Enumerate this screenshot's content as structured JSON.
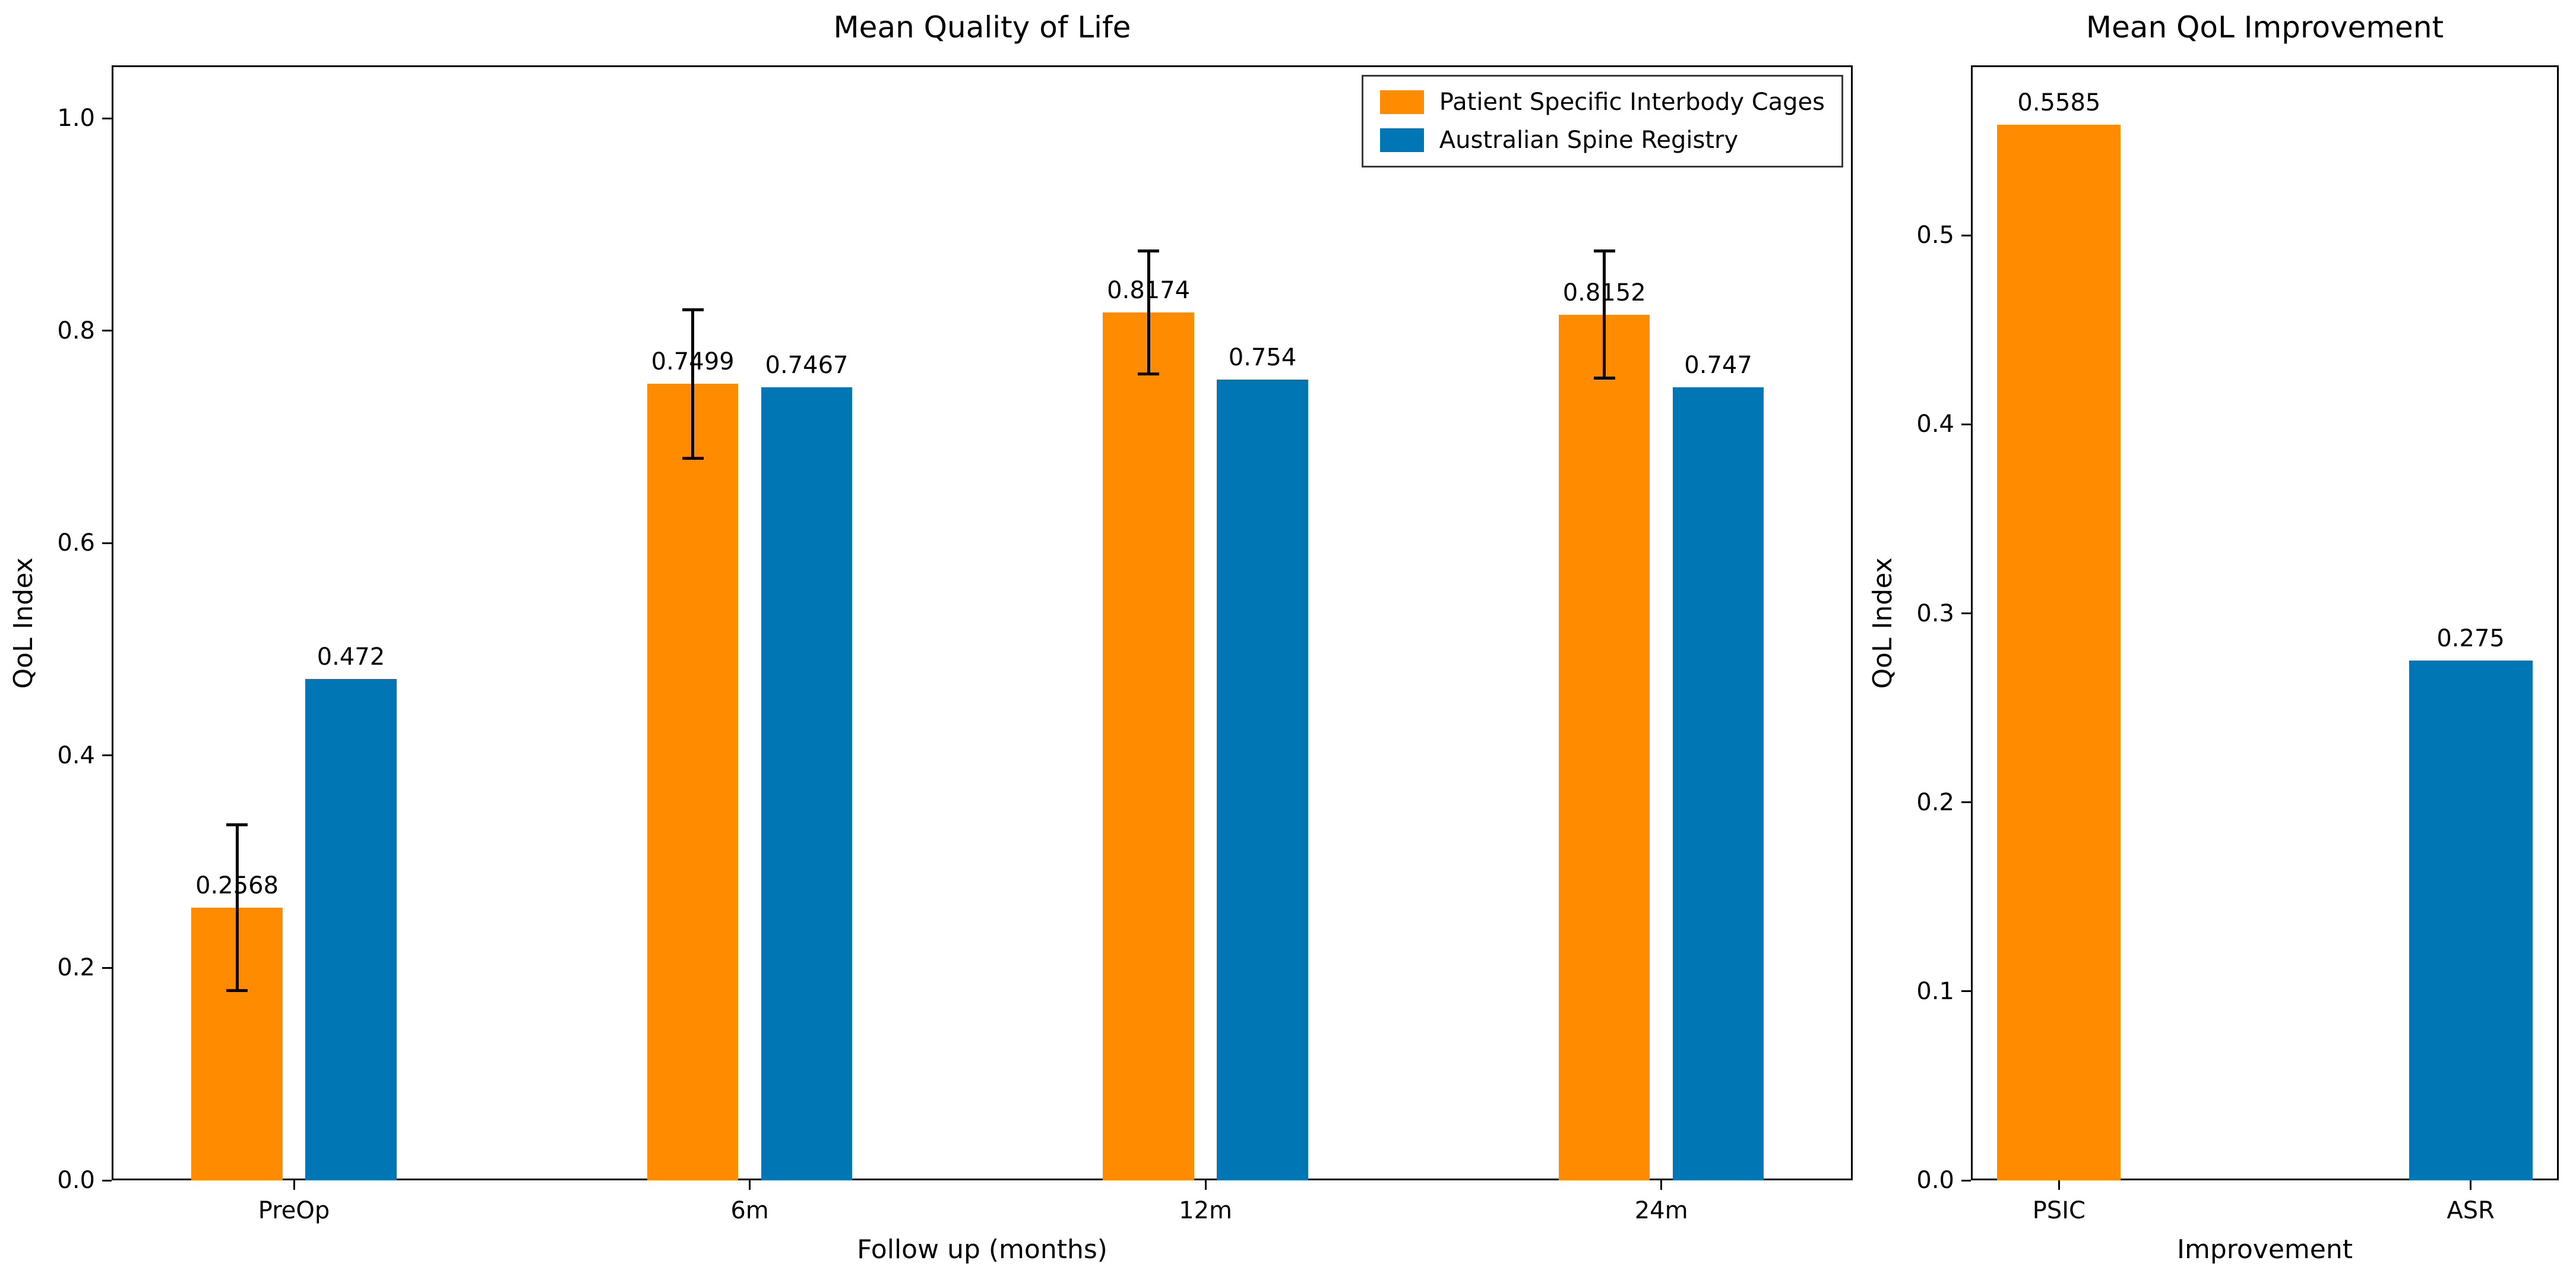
{
  "figure": {
    "background": "#ffffff",
    "text_color": "#000000",
    "accent_orange": "#ff8c00",
    "accent_blue": "#0077b4"
  },
  "chart_data": [
    {
      "id": "qol",
      "type": "bar",
      "title": "Mean Quality of Life",
      "xlabel": "Follow up (months)",
      "ylabel": "QoL Index",
      "categories": [
        "PreOp",
        "6m",
        "12m",
        "24m"
      ],
      "series": [
        {
          "name": "Patient Specific Interbody Cages",
          "color": "#ff8c00",
          "offset": -0.125,
          "values": [
            0.2568,
            0.7499,
            0.8174,
            0.8152
          ],
          "labels": [
            "0.2568",
            "0.7499",
            "0.8174",
            "0.8152"
          ],
          "errors": [
            0.078,
            0.07,
            0.058,
            0.06
          ]
        },
        {
          "name": "Australian Spine Registry",
          "color": "#0077b4",
          "offset": 0.125,
          "values": [
            0.472,
            0.7467,
            0.754,
            0.747
          ],
          "labels": [
            "0.472",
            "0.7467",
            "0.754",
            "0.747"
          ],
          "errors": null
        }
      ],
      "bar_width": 0.2,
      "xlim": [
        -0.4,
        3.42
      ],
      "ylim": [
        0,
        1.05
      ],
      "yticks": [
        0.0,
        0.2,
        0.4,
        0.6,
        0.8,
        1.0
      ],
      "ytick_labels": [
        "0.0",
        "0.2",
        "0.4",
        "0.6",
        "0.8",
        "1.0"
      ],
      "grid": false,
      "legend": {
        "position": "upper-right",
        "entries": [
          "Patient Specific Interbody Cages",
          "Australian Spine Registry"
        ]
      }
    },
    {
      "id": "improvement",
      "type": "bar",
      "title": "Mean QoL Improvement",
      "xlabel": "Improvement",
      "ylabel": "QoL Index",
      "categories": [
        "PSIC",
        "ASR"
      ],
      "series": [
        {
          "name": "Improvement",
          "colors": [
            "#ff8c00",
            "#0077b4"
          ],
          "offset": 0,
          "values": [
            0.5585,
            0.275
          ],
          "labels": [
            "0.5585",
            "0.275"
          ],
          "errors": null
        }
      ],
      "bar_width": 0.3,
      "xlim": [
        -0.214,
        1.214
      ],
      "ylim": [
        0,
        0.59
      ],
      "yticks": [
        0.0,
        0.1,
        0.2,
        0.3,
        0.4,
        0.5
      ],
      "ytick_labels": [
        "0.0",
        "0.1",
        "0.2",
        "0.3",
        "0.4",
        "0.5"
      ],
      "grid": false,
      "legend": null
    }
  ]
}
